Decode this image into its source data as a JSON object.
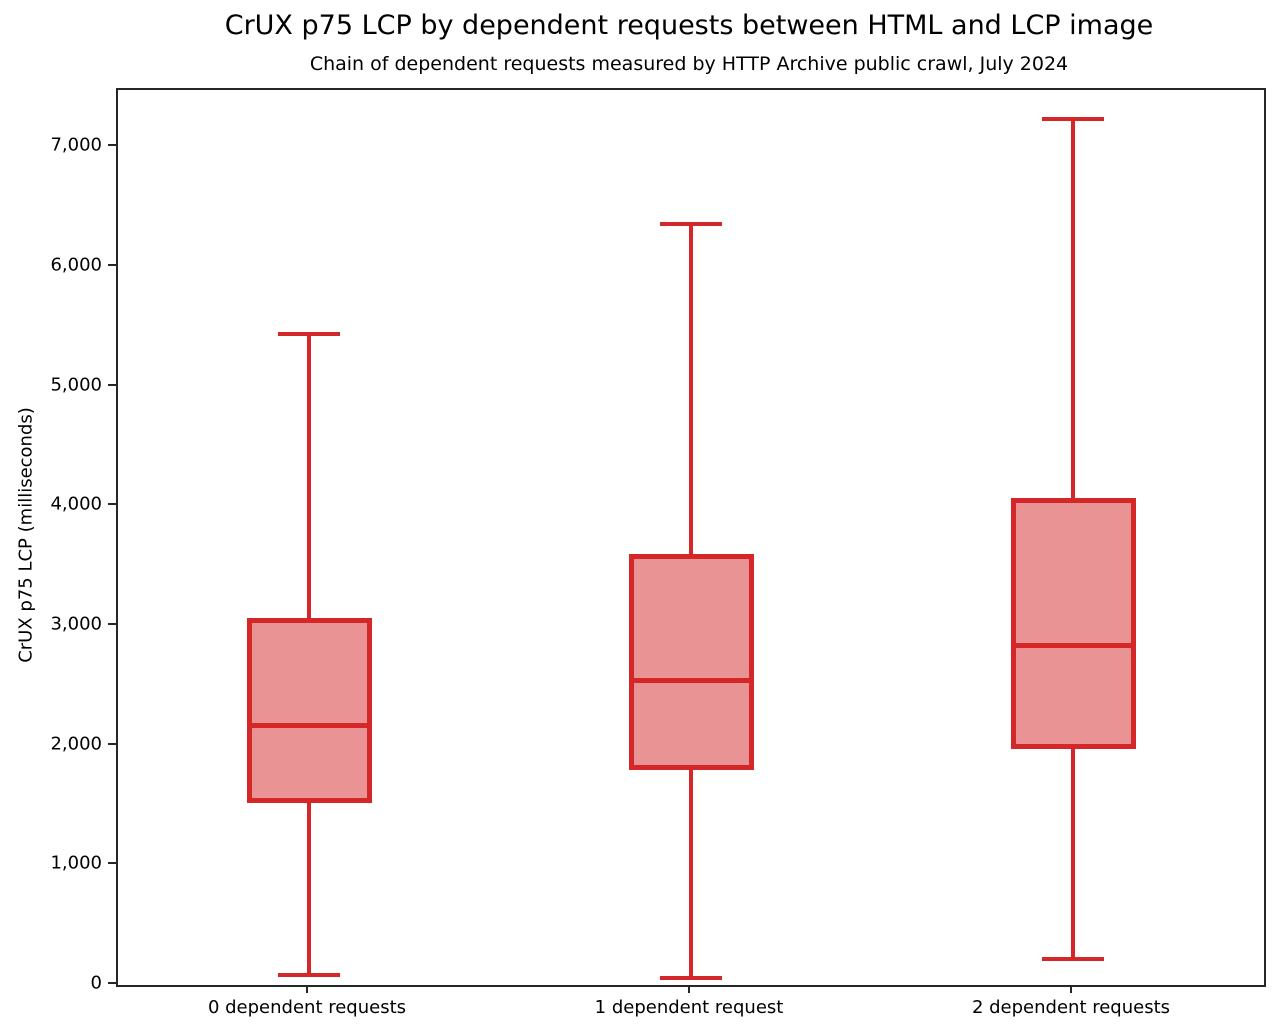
{
  "chart": {
    "title": "CrUX p75 LCP by dependent requests between HTML and LCP image",
    "subtitle": "Chain of dependent requests measured by HTTP Archive public crawl, July 2024",
    "ylabel": "CrUX p75 LCP (milliseconds)"
  },
  "chart_data": {
    "type": "boxplot",
    "title": "CrUX p75 LCP by dependent requests between HTML and LCP image",
    "subtitle": "Chain of dependent requests measured by HTTP Archive public crawl, July 2024",
    "xlabel": "",
    "ylabel": "CrUX p75 LCP (milliseconds)",
    "categories": [
      "0 dependent requests",
      "1 dependent request",
      "2 dependent requests"
    ],
    "series": [
      {
        "name": "0 dependent requests",
        "whisker_low": 85,
        "q1": 1520,
        "median": 2165,
        "q3": 3070,
        "whisker_high": 5440
      },
      {
        "name": "1 dependent request",
        "whisker_low": 60,
        "q1": 1795,
        "median": 2545,
        "q3": 3605,
        "whisker_high": 6360
      },
      {
        "name": "2 dependent requests",
        "whisker_low": 215,
        "q1": 1970,
        "median": 2840,
        "q3": 4070,
        "whisker_high": 7235
      }
    ],
    "ylim": [
      0,
      7480
    ],
    "yticks": [
      0,
      1000,
      2000,
      3000,
      4000,
      5000,
      6000,
      7000
    ],
    "ytick_labels": [
      "0",
      "1,000",
      "2,000",
      "3,000",
      "4,000",
      "5,000",
      "6,000",
      "7,000"
    ],
    "grid": false,
    "legend": "none",
    "colors": {
      "box_edge": "#d62728",
      "box_fill": "#ea9394",
      "axis": "#262626",
      "text": "#000000"
    }
  }
}
